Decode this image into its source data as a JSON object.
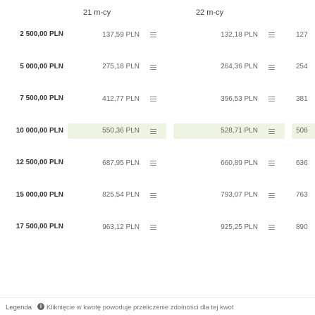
{
  "header": {
    "col1": "21 m-cy",
    "col2": "22 m-cy"
  },
  "rows": [
    {
      "amount": "2 500,00 PLN",
      "col1": "137,59 PLN",
      "col2": "132,18 PLN",
      "col3": "127",
      "highlight": false
    },
    {
      "amount": "5 000,00 PLN",
      "col1": "275,18 PLN",
      "col2": "264,36 PLN",
      "col3": "254",
      "highlight": false
    },
    {
      "amount": "7 500,00 PLN",
      "col1": "412,77 PLN",
      "col2": "396,53 PLN",
      "col3": "381",
      "highlight": false
    },
    {
      "amount": "10 000,00 PLN",
      "col1": "550,36 PLN",
      "col2": "528,71 PLN",
      "col3": "508",
      "highlight": true
    },
    {
      "amount": "12 500,00 PLN",
      "col1": "687,95 PLN",
      "col2": "660,89 PLN",
      "col3": "636",
      "highlight": false
    },
    {
      "amount": "15 000,00 PLN",
      "col1": "825,54 PLN",
      "col2": "793,07 PLN",
      "col3": "763",
      "highlight": false
    },
    {
      "amount": "17 500,00 PLN",
      "col1": "963,12 PLN",
      "col2": "925,25 PLN",
      "col3": "890",
      "highlight": false
    }
  ],
  "legend": {
    "title": "Legenda",
    "info_icon": "info-icon",
    "text": "Kliknięcie w kwotę powoduje przeliczenie zdolności dla tej kwot"
  },
  "colors": {
    "highlight": "#eef4e2"
  }
}
